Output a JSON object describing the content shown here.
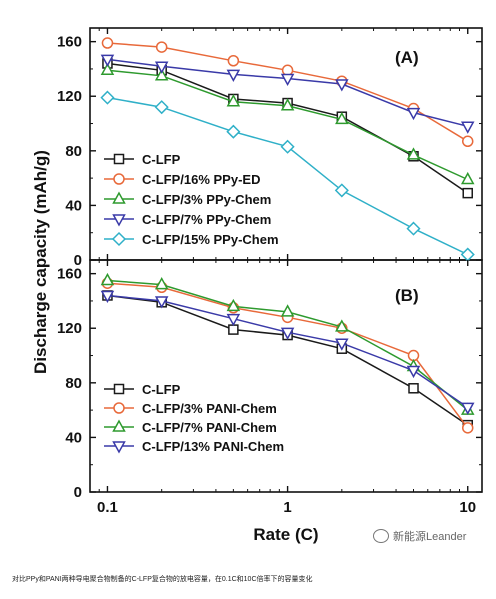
{
  "chart_data": [
    {
      "type": "line",
      "panel_label": "(A)",
      "x": [
        0.1,
        0.2,
        0.5,
        1,
        2,
        5,
        10
      ],
      "xscale": "log",
      "xlim": [
        0.08,
        12
      ],
      "ylim": [
        0,
        170
      ],
      "yticks": [
        0,
        40,
        80,
        120,
        160
      ],
      "legend_position": "bottom-left",
      "series": [
        {
          "name": "C-LFP",
          "color": "#1a1a1a",
          "marker": "square",
          "values": [
            144,
            139,
            118,
            115,
            105,
            76,
            49
          ]
        },
        {
          "name": "C-LFP/16% PPy-ED",
          "color": "#e8693a",
          "marker": "circle",
          "values": [
            159,
            156,
            146,
            139,
            131,
            111,
            87
          ]
        },
        {
          "name": "C-LFP/3% PPy-Chem",
          "color": "#2e9a2e",
          "marker": "triangle-up",
          "values": [
            139,
            135,
            116,
            113,
            103,
            77,
            59
          ]
        },
        {
          "name": "C-LFP/7% PPy-Chem",
          "color": "#3a3aa8",
          "marker": "triangle-down",
          "values": [
            147,
            142,
            136,
            133,
            129,
            108,
            98
          ]
        },
        {
          "name": "C-LFP/15% PPy-Chem",
          "color": "#2fb0c8",
          "marker": "diamond",
          "values": [
            119,
            112,
            94,
            83,
            51,
            23,
            4
          ]
        }
      ]
    },
    {
      "type": "line",
      "panel_label": "(B)",
      "x": [
        0.1,
        0.2,
        0.5,
        1,
        2,
        5,
        10
      ],
      "xscale": "log",
      "xlim": [
        0.08,
        12
      ],
      "ylim": [
        0,
        170
      ],
      "yticks": [
        0,
        40,
        80,
        120,
        160
      ],
      "legend_position": "bottom-left",
      "series": [
        {
          "name": "C-LFP",
          "color": "#1a1a1a",
          "marker": "square",
          "values": [
            144,
            139,
            119,
            115,
            105,
            76,
            49
          ]
        },
        {
          "name": "C-LFP/3% PANI-Chem",
          "color": "#e8693a",
          "marker": "circle",
          "values": [
            153,
            150,
            135,
            128,
            120,
            100,
            47
          ]
        },
        {
          "name": "C-LFP/7% PANI-Chem",
          "color": "#2e9a2e",
          "marker": "triangle-up",
          "values": [
            155,
            152,
            136,
            132,
            121,
            92,
            60
          ]
        },
        {
          "name": "C-LFP/13% PANI-Chem",
          "color": "#3a3aa8",
          "marker": "triangle-down",
          "values": [
            144,
            140,
            127,
            117,
            109,
            89,
            62
          ]
        }
      ]
    }
  ],
  "axes": {
    "xlabel": "Rate (C)",
    "ylabel": "Discharge capacity (mAh/g)",
    "xtick_labels": [
      "0.1",
      "1",
      "10"
    ]
  },
  "watermark": "新能源Leander",
  "caption": "对比PPy和PANI两种导电聚合物制备的C-LFP复合物的放电容量，在0.1C和10C倍率下的容量变化"
}
